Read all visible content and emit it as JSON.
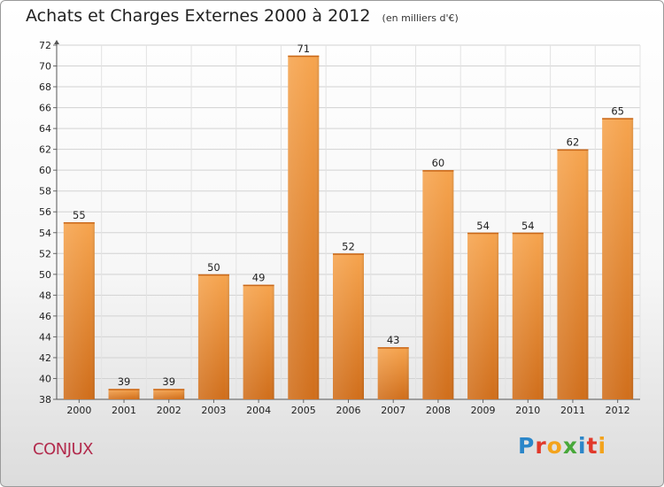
{
  "title": "Achats et Charges Externes 2000 à 2012",
  "unit": "(en milliers d'€)",
  "commune": "CONJUX",
  "logo": {
    "p": "P",
    "r": "r",
    "o": "o",
    "x": "x",
    "i": "i",
    "t": "t",
    "i2": "i"
  },
  "colors": {
    "bar_light": "#f6a44e",
    "bar_dark": "#d06e1b",
    "commune": "#b22a4c"
  },
  "chart_data": {
    "type": "bar",
    "title": "Achats et Charges Externes 2000 à 2012",
    "subtitle": "(en milliers d'€)",
    "categories": [
      "2000",
      "2001",
      "2002",
      "2003",
      "2004",
      "2005",
      "2006",
      "2007",
      "2008",
      "2009",
      "2010",
      "2011",
      "2012"
    ],
    "values": [
      55,
      39,
      39,
      50,
      49,
      71,
      52,
      43,
      60,
      54,
      54,
      62,
      65
    ],
    "ylim": [
      38,
      72
    ],
    "yticks": [
      38,
      40,
      42,
      44,
      46,
      48,
      50,
      52,
      54,
      56,
      58,
      60,
      62,
      64,
      66,
      68,
      70,
      72
    ],
    "grid": true
  }
}
